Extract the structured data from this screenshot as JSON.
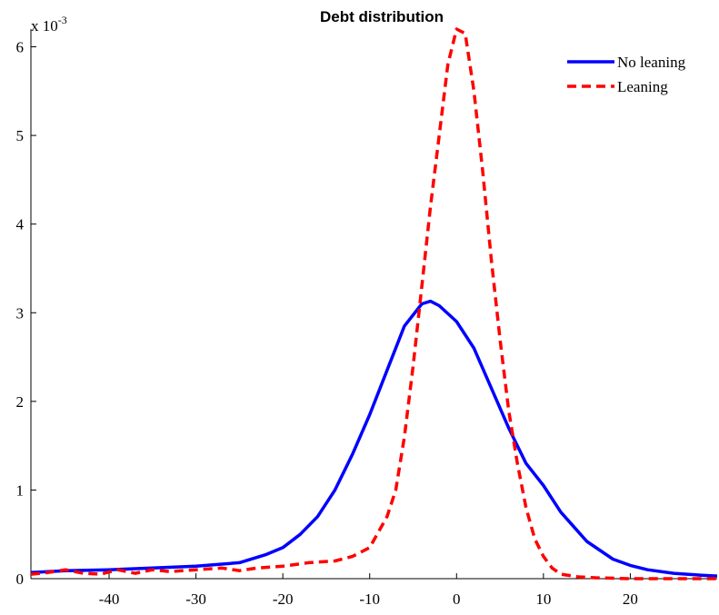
{
  "chart_data": {
    "type": "line",
    "title": "Debt distribution",
    "xlabel": "",
    "ylabel": "",
    "y_multiplier_label": "x 10",
    "y_multiplier_exponent": "-3",
    "xlim": [
      -49,
      30
    ],
    "ylim": [
      0,
      6.2
    ],
    "x_ticks": [
      -40,
      -30,
      -20,
      -10,
      0,
      10,
      20
    ],
    "y_ticks": [
      0,
      1,
      2,
      3,
      4,
      5,
      6
    ],
    "grid": false,
    "legend_position": "top-right",
    "series": [
      {
        "name": "No leaning",
        "color": "#0000ff",
        "style": "solid",
        "x": [
          -49,
          -45,
          -40,
          -35,
          -30,
          -25,
          -22,
          -20,
          -18,
          -16,
          -14,
          -12,
          -10,
          -8,
          -6,
          -4,
          -3,
          -2,
          0,
          2,
          4,
          6,
          8,
          10,
          12,
          15,
          18,
          20,
          22,
          25,
          28,
          30
        ],
        "y": [
          0.07,
          0.09,
          0.1,
          0.12,
          0.14,
          0.18,
          0.27,
          0.35,
          0.5,
          0.7,
          1.0,
          1.4,
          1.85,
          2.35,
          2.85,
          3.1,
          3.13,
          3.08,
          2.9,
          2.6,
          2.15,
          1.7,
          1.3,
          1.05,
          0.75,
          0.42,
          0.22,
          0.15,
          0.1,
          0.06,
          0.04,
          0.03
        ]
      },
      {
        "name": "Leaning",
        "color": "#ff0000",
        "style": "dashed",
        "x": [
          -49,
          -47,
          -45,
          -43,
          -41,
          -39,
          -37,
          -35,
          -33,
          -30,
          -27,
          -25,
          -23,
          -20,
          -17,
          -14,
          -12,
          -10,
          -8,
          -7,
          -6,
          -5,
          -4,
          -3,
          -2,
          -1,
          0,
          1,
          2,
          3,
          4,
          5,
          6,
          7,
          8,
          9,
          10,
          11,
          12,
          14,
          16,
          20,
          25,
          30
        ],
        "y": [
          0.05,
          0.07,
          0.1,
          0.06,
          0.05,
          0.1,
          0.06,
          0.1,
          0.08,
          0.1,
          0.12,
          0.09,
          0.12,
          0.14,
          0.18,
          0.2,
          0.25,
          0.35,
          0.7,
          1.0,
          1.6,
          2.4,
          3.3,
          4.2,
          5.0,
          5.8,
          6.2,
          6.15,
          5.5,
          4.6,
          3.6,
          2.7,
          1.9,
          1.3,
          0.8,
          0.45,
          0.25,
          0.12,
          0.05,
          0.02,
          0.01,
          0.0,
          0.0,
          0.0
        ]
      }
    ]
  }
}
